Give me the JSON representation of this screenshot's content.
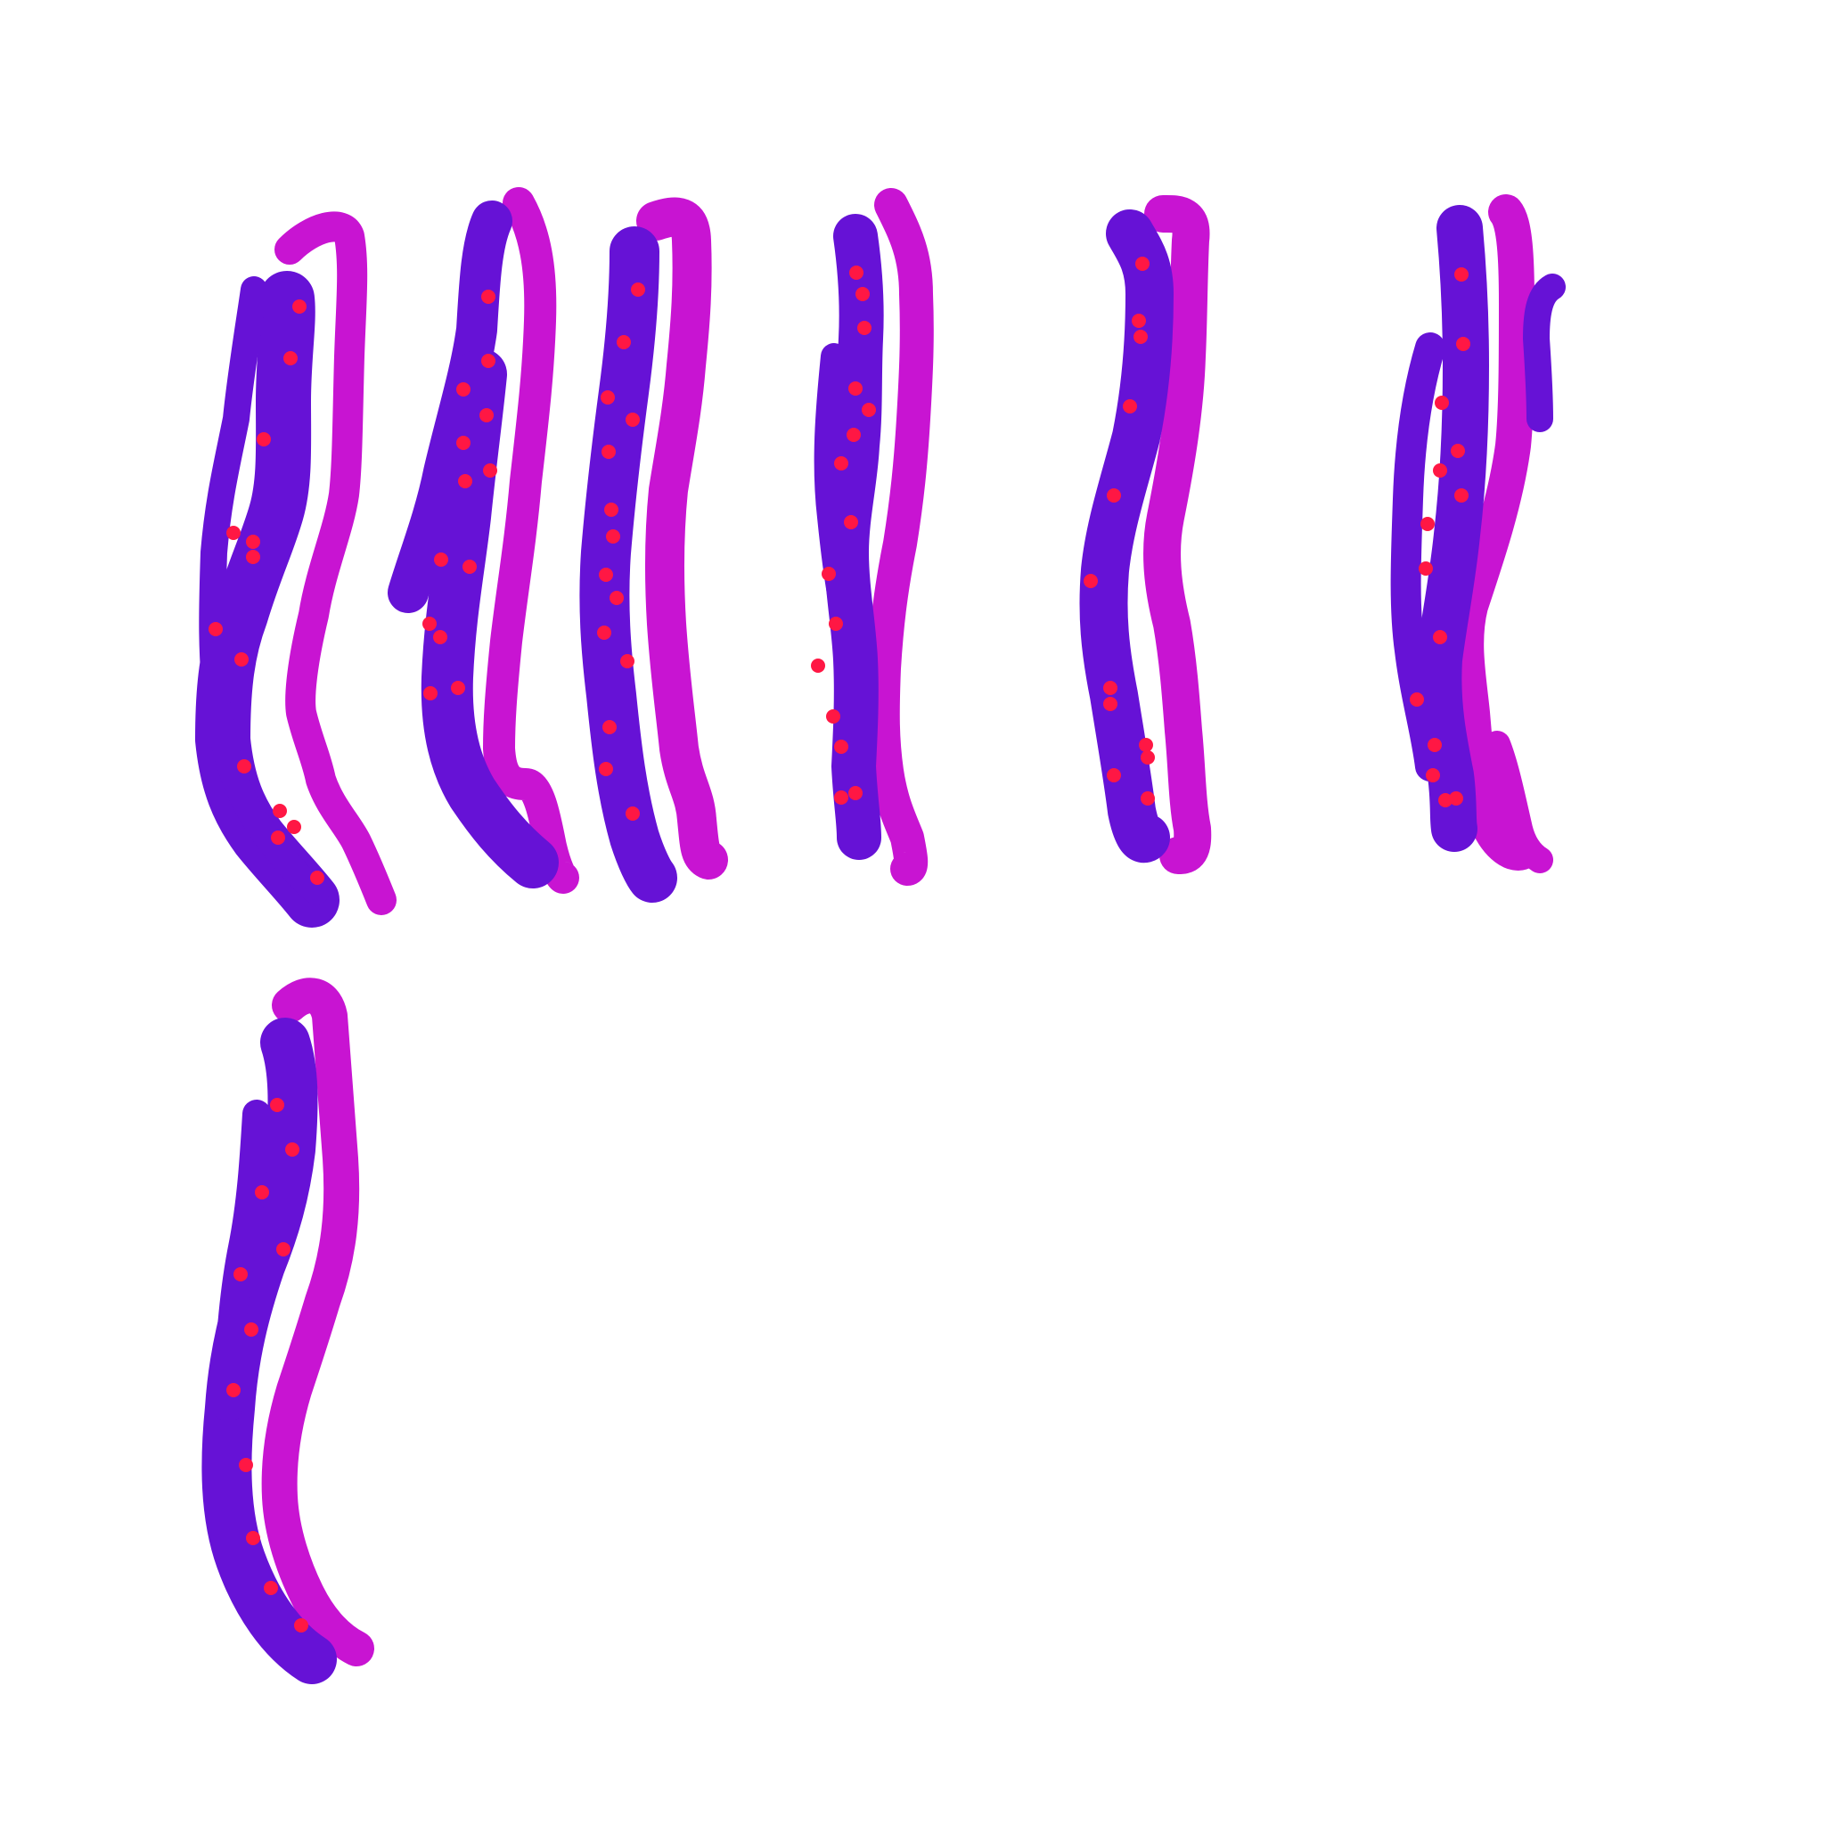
{
  "drawing": {
    "description": "",
    "colors": {
      "background": "#ffffff",
      "magenta": "#c814d2",
      "purple": "#6612d6",
      "dot": "#ff1744"
    },
    "glyph_count": 7
  }
}
